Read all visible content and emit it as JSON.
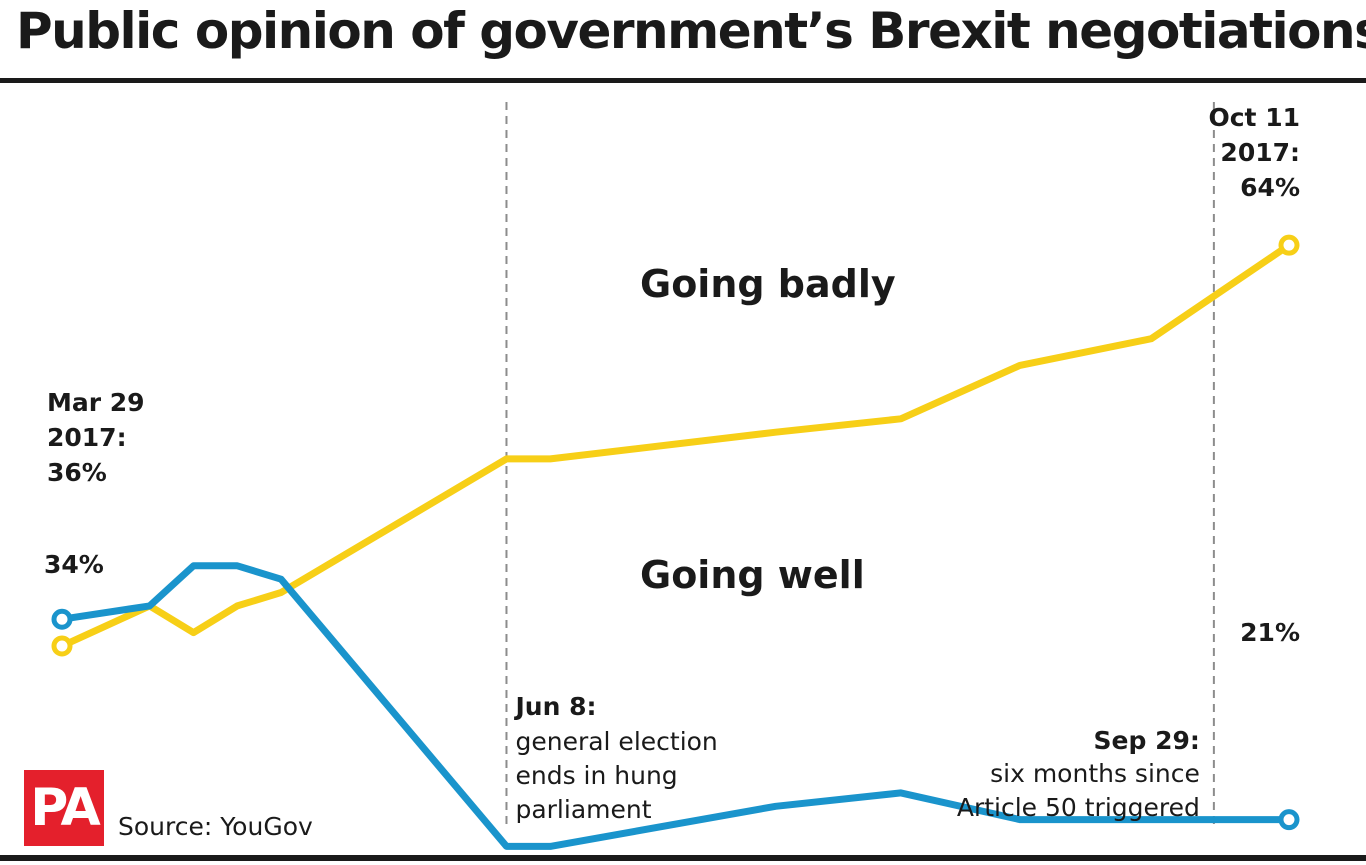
{
  "header": {
    "title": "Public opinion of government’s Brexit negotiations"
  },
  "footer": {
    "logo_text": "PA",
    "source": "Source: YouGov"
  },
  "chart_data": {
    "type": "line",
    "title": "Public opinion of government’s Brexit negotiations",
    "x": [
      "2017-03-29",
      "2017-04-12",
      "2017-04-19",
      "2017-04-26",
      "2017-05-03",
      "2017-06-08",
      "2017-06-15",
      "2017-07-21",
      "2017-08-10",
      "2017-08-29",
      "2017-09-19",
      "2017-10-11"
    ],
    "ylim": [
      0,
      80
    ],
    "grid": false,
    "legend": "inline labels",
    "series": [
      {
        "name": "Going badly",
        "color": "#f7cf17",
        "values": [
          34,
          37,
          35,
          37,
          38,
          48,
          48,
          50,
          51,
          55,
          57,
          64
        ]
      },
      {
        "name": "Going well",
        "color": "#1a94cc",
        "values": [
          36,
          37,
          40,
          40,
          39,
          19,
          19,
          22,
          23,
          21,
          21,
          21
        ]
      }
    ],
    "reference_lines": [
      {
        "x": "2017-06-08",
        "label_bold": "Jun 8:",
        "label_lines": [
          "general election",
          "ends in hung",
          "parliament"
        ]
      },
      {
        "x": "2017-09-29",
        "label_bold": "Sep 29:",
        "label_lines": [
          "six months since",
          "Article 50 triggered"
        ]
      }
    ],
    "annotations": {
      "start_date": [
        "Mar 29",
        "2017:"
      ],
      "start_well_value": "36%",
      "start_badly_value": "34%",
      "end_date": [
        "Oct 11",
        "2017:"
      ],
      "end_badly_value": "64%",
      "end_well_value": "21%"
    }
  }
}
